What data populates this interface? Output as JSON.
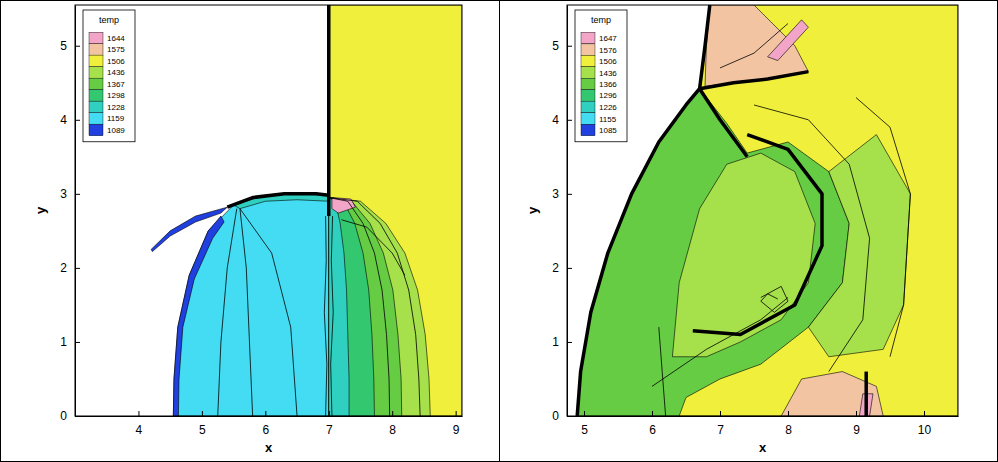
{
  "chart_data": [
    {
      "type": "contour",
      "xlabel": "x",
      "ylabel": "y",
      "xlim": [
        3.0,
        9.1
      ],
      "ylim": [
        0,
        5.55
      ],
      "xticks": [
        4,
        5,
        6,
        7,
        8,
        9
      ],
      "yticks": [
        0,
        1,
        2,
        3,
        4,
        5
      ],
      "legend": "top-left",
      "colorbar": {
        "title": "temp",
        "range": [
          1089,
          1644
        ],
        "ticks": [
          1644,
          1575,
          1506,
          1436,
          1367,
          1298,
          1228,
          1159,
          1089
        ],
        "colors": [
          "#f2a5c6",
          "#f3c4a2",
          "#f0f03c",
          "#a6e04a",
          "#66cc44",
          "#33c870",
          "#30d0c0",
          "#44dcf2",
          "#2040e0"
        ]
      },
      "regions": [
        {
          "level": 1506,
          "x": [
            7,
            9.1,
            9.1,
            7
          ],
          "y": [
            0,
            0,
            5.55,
            5.55
          ]
        },
        {
          "level": 1159,
          "x": [
            7,
            7,
            6.5,
            6.0,
            5.5,
            5.1,
            4.8,
            4.62,
            4.56,
            4.55
          ],
          "y": [
            0,
            2.95,
            3.0,
            2.98,
            2.85,
            2.5,
            1.9,
            1.2,
            0.5,
            0
          ]
        },
        {
          "level": 1436,
          "x": [
            7,
            8.6,
            8.58,
            8.52,
            8.4,
            8.2,
            7.9,
            7.5,
            7.0
          ],
          "y": [
            0,
            0,
            0.5,
            1.1,
            1.7,
            2.2,
            2.6,
            2.9,
            2.95
          ]
        },
        {
          "level": 1367,
          "x": [
            7,
            8.15,
            8.14,
            8.09,
            8.01,
            7.86,
            7.65,
            7.36,
            7.0
          ],
          "y": [
            0,
            0,
            0.5,
            1.1,
            1.7,
            2.2,
            2.6,
            2.9,
            2.95
          ]
        },
        {
          "level": 1298,
          "x": [
            7,
            7.72,
            7.71,
            7.68,
            7.63,
            7.54,
            7.41,
            7.23,
            7.0
          ],
          "y": [
            0,
            0,
            0.5,
            1.1,
            1.7,
            2.2,
            2.6,
            2.9,
            2.95
          ]
        },
        {
          "level": 1228,
          "x": [
            7,
            7.32,
            7.32,
            7.3,
            7.28,
            7.24,
            7.18,
            7.1,
            7.0
          ],
          "y": [
            0,
            0,
            0.5,
            1.1,
            1.7,
            2.2,
            2.6,
            2.9,
            2.95
          ]
        },
        {
          "level": 1228,
          "x": [
            5.5,
            6.0,
            6.5,
            7.0,
            7.0,
            6.5,
            6.0,
            5.6
          ],
          "y": [
            2.85,
            2.98,
            3.0,
            2.98,
            2.9,
            2.92,
            2.9,
            2.8
          ]
        },
        {
          "level": 1089,
          "x": [
            4.55,
            4.56,
            4.62,
            4.8,
            5.1,
            5.3,
            5.35,
            5.17,
            4.88,
            4.7,
            4.64,
            4.63
          ],
          "y": [
            0,
            0.5,
            1.2,
            1.9,
            2.5,
            2.7,
            2.62,
            2.4,
            1.85,
            1.2,
            0.5,
            0
          ]
        },
        {
          "level": 1089,
          "x": [
            4.2,
            4.5,
            4.9,
            5.4,
            5.3,
            4.9,
            4.5,
            4.22
          ],
          "y": [
            2.25,
            2.5,
            2.7,
            2.82,
            2.74,
            2.62,
            2.43,
            2.22
          ]
        },
        {
          "level": 1644,
          "x": [
            7.05,
            7.35,
            7.42,
            7.15,
            7.05
          ],
          "y": [
            2.95,
            2.93,
            2.82,
            2.74,
            2.8
          ]
        }
      ],
      "lines": [
        {
          "line_style": "thick",
          "x": [
            7,
            7
          ],
          "y": [
            2.7,
            5.55
          ]
        },
        {
          "line_style": "thick",
          "x": [
            5.4,
            5.8,
            6.3,
            6.8,
            7.0
          ],
          "y": [
            2.82,
            2.95,
            3.0,
            3.0,
            2.98
          ]
        },
        {
          "line_style": "solid",
          "x": [
            6.95,
            6.97,
            6.93,
            6.96,
            6.95
          ],
          "y": [
            0,
            0.7,
            1.4,
            2.1,
            2.7
          ]
        },
        {
          "line_style": "solid",
          "x": [
            7.05,
            7.03,
            7.07,
            7.04,
            7.06
          ],
          "y": [
            0,
            0.7,
            1.4,
            2.1,
            2.7
          ]
        },
        {
          "line_style": "solid",
          "x": [
            5.55,
            5.4,
            5.3,
            5.25
          ],
          "y": [
            2.8,
            2.0,
            1.0,
            0
          ]
        },
        {
          "line_style": "solid",
          "x": [
            5.6,
            5.7,
            5.75,
            5.8
          ],
          "y": [
            2.8,
            2.0,
            1.0,
            0
          ]
        },
        {
          "line_style": "solid",
          "x": [
            5.6,
            6.1,
            6.4,
            6.5
          ],
          "y": [
            2.8,
            2.2,
            1.2,
            0
          ]
        },
        {
          "line_style": "solid",
          "x": [
            8.44,
            8.42,
            8.37,
            8.26,
            8.08,
            7.81,
            7.45,
            7.0
          ],
          "y": [
            0,
            0.5,
            1.1,
            1.7,
            2.2,
            2.6,
            2.9,
            2.95
          ]
        },
        {
          "line_style": "solid",
          "x": [
            7.96,
            7.95,
            7.91,
            7.84,
            7.72,
            7.54,
            7.3,
            7.0
          ],
          "y": [
            0,
            0.5,
            1.1,
            1.7,
            2.2,
            2.6,
            2.9,
            2.95
          ]
        },
        {
          "line_style": "solid",
          "x": [
            7.2,
            7.6,
            8.0,
            8.2
          ],
          "y": [
            2.65,
            2.55,
            2.2,
            1.9
          ]
        }
      ]
    },
    {
      "type": "contour",
      "xlabel": "x",
      "ylabel": "y",
      "xlim": [
        4.75,
        10.5
      ],
      "ylim": [
        0,
        5.55
      ],
      "xticks": [
        5,
        6,
        7,
        8,
        9,
        10
      ],
      "yticks": [
        0,
        1,
        2,
        3,
        4,
        5
      ],
      "legend": "top-left",
      "colorbar": {
        "title": "temp",
        "range": [
          1085,
          1647
        ],
        "ticks": [
          1647,
          1576,
          1506,
          1436,
          1366,
          1296,
          1226,
          1155,
          1085
        ],
        "colors": [
          "#f2a5c6",
          "#f3c4a2",
          "#f0f03c",
          "#a6e04a",
          "#66cc44",
          "#33c870",
          "#30d0c0",
          "#44dcf2",
          "#2040e0"
        ]
      },
      "regions": [
        {
          "level": 1506,
          "x": [
            4.9,
            4.95,
            5.1,
            5.35,
            5.7,
            6.1,
            6.5,
            6.7,
            6.78,
            6.85,
            10.5,
            10.5
          ],
          "y": [
            0,
            0.6,
            1.4,
            2.2,
            3.0,
            3.7,
            4.2,
            4.42,
            5.0,
            5.55,
            5.55,
            0
          ]
        },
        {
          "level": 1366,
          "x": [
            4.9,
            4.95,
            5.1,
            5.35,
            5.7,
            6.1,
            6.5,
            6.7,
            7.1,
            7.4,
            8.0,
            8.6,
            8.9,
            8.8,
            8.3,
            7.6,
            7.0,
            6.5,
            6.4
          ],
          "y": [
            0,
            0.6,
            1.4,
            2.2,
            3.0,
            3.7,
            4.2,
            4.42,
            3.95,
            3.55,
            3.7,
            3.3,
            2.6,
            1.8,
            1.2,
            0.7,
            0.5,
            0.25,
            0
          ]
        },
        {
          "level": 1436,
          "x": [
            8.6,
            9.3,
            9.8,
            9.7,
            9.4,
            8.6,
            8.3,
            8.8,
            8.9
          ],
          "y": [
            3.3,
            3.8,
            3.0,
            1.5,
            0.9,
            0.8,
            1.2,
            1.8,
            2.6
          ]
        },
        {
          "level": 1436,
          "x": [
            6.3,
            6.4,
            6.7,
            7.1,
            7.6,
            8.1,
            8.4,
            8.3,
            7.9,
            7.3,
            6.8
          ],
          "y": [
            0.8,
            1.8,
            2.8,
            3.4,
            3.55,
            3.3,
            2.6,
            1.8,
            1.3,
            1.0,
            0.8
          ]
        },
        {
          "level": 1576,
          "x": [
            6.78,
            7.2,
            7.7,
            8.3,
            8.1,
            7.5,
            6.85,
            6.8
          ],
          "y": [
            4.45,
            4.5,
            4.55,
            4.65,
            5.0,
            5.55,
            5.55,
            5.0
          ]
        },
        {
          "level": 1647,
          "x": [
            7.7,
            8.2,
            8.3,
            7.85
          ],
          "y": [
            4.85,
            5.35,
            5.25,
            4.8
          ]
        },
        {
          "level": 1576,
          "x": [
            7.9,
            8.2,
            8.8,
            9.3,
            9.4
          ],
          "y": [
            0,
            0.5,
            0.6,
            0.4,
            0
          ]
        },
        {
          "level": 1647,
          "x": [
            9.05,
            9.1,
            9.25,
            9.2
          ],
          "y": [
            0,
            0.3,
            0.3,
            0
          ]
        }
      ],
      "lines": [
        {
          "line_style": "thick",
          "x": [
            4.9,
            4.95,
            5.1,
            5.35,
            5.7,
            6.1,
            6.5,
            6.7,
            6.78,
            6.85
          ],
          "y": [
            0,
            0.6,
            1.4,
            2.2,
            3.0,
            3.7,
            4.2,
            4.42,
            5.0,
            5.55
          ]
        },
        {
          "line_style": "thick",
          "x": [
            6.7,
            7.2,
            7.7,
            8.3
          ],
          "y": [
            4.42,
            4.5,
            4.55,
            4.65
          ]
        },
        {
          "line_style": "thick",
          "x": [
            6.7,
            7.0,
            7.4
          ],
          "y": [
            4.42,
            4.0,
            3.5
          ]
        },
        {
          "line_style": "thick",
          "x": [
            6.6,
            7.3,
            8.1,
            8.5,
            8.5,
            8.0,
            7.4
          ],
          "y": [
            1.15,
            1.1,
            1.5,
            2.3,
            3.0,
            3.6,
            3.8
          ]
        },
        {
          "line_style": "solid",
          "x": [
            8.6,
            9.1,
            9.2,
            8.9,
            8.3,
            7.5
          ],
          "y": [
            0.6,
            1.3,
            2.4,
            3.4,
            4.0,
            4.2
          ]
        },
        {
          "line_style": "solid",
          "x": [
            6.2,
            6.15,
            6.1
          ],
          "y": [
            0,
            0.6,
            1.2
          ]
        },
        {
          "line_style": "thick",
          "x": [
            9.15,
            9.15
          ],
          "y": [
            0,
            0.6
          ]
        },
        {
          "line_style": "solid",
          "x": [
            7.6,
            7.9,
            8.0,
            7.8,
            7.6,
            7.7,
            7.85
          ],
          "y": [
            1.6,
            1.75,
            1.55,
            1.4,
            1.55,
            1.65,
            1.58
          ]
        },
        {
          "line_style": "solid",
          "x": [
            6.0,
            6.8,
            7.6,
            8.0
          ],
          "y": [
            0.4,
            0.9,
            1.3,
            1.6
          ]
        },
        {
          "line_style": "solid",
          "x": [
            9.5,
            9.7,
            9.8,
            9.5,
            9.0
          ],
          "y": [
            0.8,
            1.5,
            3.0,
            3.9,
            4.3
          ]
        },
        {
          "line_style": "solid",
          "x": [
            7.0,
            7.5,
            8.0
          ],
          "y": [
            4.7,
            4.9,
            5.3
          ]
        }
      ]
    }
  ]
}
